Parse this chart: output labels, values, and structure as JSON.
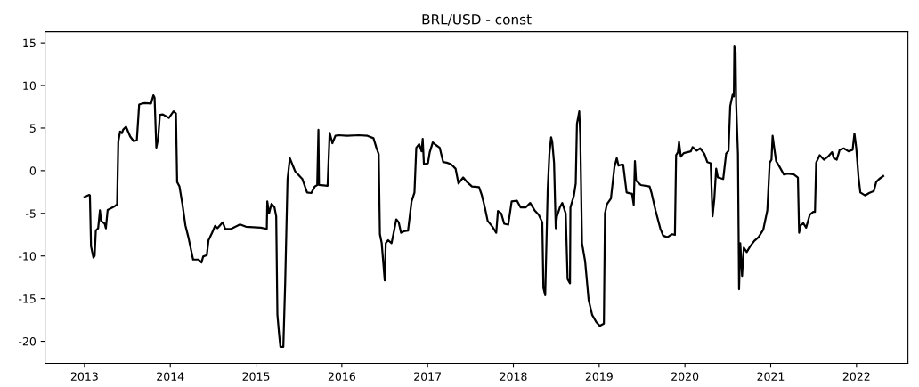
{
  "chart_data": {
    "type": "line",
    "title": "BRL/USD - const",
    "x": [
      2013.0,
      2013.055,
      2013.063,
      2013.076,
      2013.104,
      2013.118,
      2013.132,
      2013.159,
      2013.18,
      2013.194,
      2013.235,
      2013.249,
      2013.27,
      2013.353,
      2013.38,
      2013.394,
      2013.415,
      2013.436,
      2013.45,
      2013.484,
      2013.533,
      2013.574,
      2013.61,
      2013.637,
      2013.67,
      2013.706,
      2013.775,
      2013.803,
      2013.817,
      2013.837,
      2013.858,
      2013.879,
      2013.913,
      2013.983,
      2014.038,
      2014.066,
      2014.08,
      2014.107,
      2014.142,
      2014.176,
      2014.211,
      2014.266,
      2014.329,
      2014.363,
      2014.384,
      2014.426,
      2014.446,
      2014.488,
      2014.522,
      2014.55,
      2014.612,
      2014.64,
      2014.709,
      2014.813,
      2014.882,
      2015.055,
      2015.125,
      2015.131,
      2015.152,
      2015.18,
      2015.215,
      2015.235,
      2015.249,
      2015.27,
      2015.284,
      2015.318,
      2015.339,
      2015.367,
      2015.394,
      2015.429,
      2015.457,
      2015.54,
      2015.595,
      2015.644,
      2015.685,
      2015.713,
      2015.727,
      2015.734,
      2015.834,
      2015.858,
      2015.89,
      2015.925,
      2015.96,
      2016.06,
      2016.198,
      2016.3,
      2016.369,
      2016.403,
      2016.43,
      2016.444,
      2016.465,
      2016.5,
      2016.512,
      2016.54,
      2016.58,
      2016.608,
      2016.635,
      2016.663,
      2016.69,
      2016.724,
      2016.772,
      2016.813,
      2016.847,
      2016.868,
      2016.902,
      2016.93,
      2016.943,
      2016.957,
      2017.004,
      2017.025,
      2017.06,
      2017.093,
      2017.141,
      2017.182,
      2017.223,
      2017.271,
      2017.326,
      2017.36,
      2017.415,
      2017.463,
      2017.517,
      2017.6,
      2017.633,
      2017.667,
      2017.7,
      2017.756,
      2017.8,
      2017.82,
      2017.858,
      2017.893,
      2017.94,
      2017.98,
      2018.043,
      2018.084,
      2018.145,
      2018.196,
      2018.248,
      2018.296,
      2018.337,
      2018.35,
      2018.371,
      2018.4,
      2018.42,
      2018.44,
      2018.453,
      2018.474,
      2018.494,
      2018.508,
      2018.542,
      2018.57,
      2018.61,
      2018.632,
      2018.66,
      2018.665,
      2018.706,
      2018.727,
      2018.741,
      2018.768,
      2018.78,
      2018.8,
      2018.836,
      2018.877,
      2018.918,
      2018.966,
      2019.007,
      2019.055,
      2019.068,
      2019.09,
      2019.137,
      2019.178,
      2019.205,
      2019.226,
      2019.26,
      2019.28,
      2019.32,
      2019.383,
      2019.403,
      2019.417,
      2019.43,
      2019.485,
      2019.588,
      2019.609,
      2019.657,
      2019.712,
      2019.746,
      2019.794,
      2019.85,
      2019.883,
      2019.897,
      2019.918,
      2019.931,
      2019.952,
      2019.986,
      2020.069,
      2020.089,
      2020.137,
      2020.178,
      2020.226,
      2020.26,
      2020.3,
      2020.322,
      2020.343,
      2020.364,
      2020.384,
      2020.446,
      2020.48,
      2020.508,
      2020.528,
      2020.556,
      2020.57,
      2020.576,
      2020.59,
      2020.597,
      2020.618,
      2020.631,
      2020.645,
      2020.666,
      2020.686,
      2020.72,
      2020.762,
      2020.81,
      2020.858,
      2020.913,
      2020.96,
      2020.988,
      2021.009,
      2021.022,
      2021.043,
      2021.063,
      2021.105,
      2021.153,
      2021.2,
      2021.27,
      2021.317,
      2021.331,
      2021.35,
      2021.38,
      2021.413,
      2021.455,
      2021.496,
      2021.516,
      2021.53,
      2021.571,
      2021.62,
      2021.667,
      2021.715,
      2021.736,
      2021.77,
      2021.804,
      2021.852,
      2021.907,
      2021.955,
      2021.976,
      2021.997,
      2022.024,
      2022.045,
      2022.1,
      2022.147,
      2022.202,
      2022.23,
      2022.264,
      2022.312
    ],
    "values": [
      -3.08,
      -2.83,
      -2.9,
      -8.85,
      -10.2,
      -10.0,
      -7.0,
      -6.75,
      -4.65,
      -5.9,
      -6.2,
      -6.75,
      -4.6,
      -4.15,
      -3.95,
      3.4,
      4.6,
      4.4,
      4.8,
      5.15,
      4.0,
      3.46,
      3.57,
      7.76,
      7.87,
      7.94,
      7.87,
      8.85,
      8.57,
      2.7,
      3.74,
      6.54,
      6.6,
      6.19,
      6.96,
      6.71,
      -1.33,
      -1.85,
      -3.95,
      -6.4,
      -7.8,
      -10.42,
      -10.42,
      -10.77,
      -10.07,
      -9.9,
      -8.15,
      -7.27,
      -6.47,
      -6.75,
      -6.05,
      -6.82,
      -6.82,
      -6.29,
      -6.57,
      -6.68,
      -6.82,
      -3.6,
      -5.0,
      -3.88,
      -4.3,
      -5.35,
      -16.9,
      -19.3,
      -20.66,
      -20.66,
      -13.4,
      -0.98,
      1.47,
      0.59,
      -0.1,
      -0.98,
      -2.55,
      -2.62,
      -1.85,
      -1.68,
      4.79,
      -1.68,
      -1.78,
      4.44,
      3.22,
      4.09,
      4.16,
      4.09,
      4.16,
      4.09,
      3.81,
      2.69,
      1.92,
      -7.45,
      -8.5,
      -12.87,
      -8.5,
      -8.15,
      -8.5,
      -7.1,
      -5.7,
      -6.05,
      -7.27,
      -7.1,
      -7.03,
      -3.6,
      -2.55,
      2.69,
      3.11,
      2.27,
      3.74,
      0.77,
      0.87,
      2.17,
      3.32,
      3.04,
      2.69,
      1.01,
      0.94,
      0.77,
      0.24,
      -1.5,
      -0.8,
      -1.36,
      -1.85,
      -1.92,
      -2.9,
      -4.3,
      -5.87,
      -6.57,
      -7.27,
      -4.72,
      -5.0,
      -6.22,
      -6.33,
      -3.6,
      -3.53,
      -4.3,
      -4.3,
      -3.78,
      -4.65,
      -5.17,
      -6.05,
      -13.74,
      -14.6,
      -2.2,
      1.99,
      3.92,
      3.4,
      0.94,
      -6.75,
      -5.35,
      -4.3,
      -3.78,
      -5.0,
      -12.7,
      -13.2,
      -4.3,
      -2.9,
      -1.5,
      5.49,
      6.96,
      4.09,
      -8.5,
      -10.6,
      -15.14,
      -16.9,
      -17.76,
      -18.2,
      -17.94,
      -5.0,
      -3.95,
      -3.25,
      0.42,
      1.47,
      0.59,
      0.7,
      0.7,
      -2.55,
      -2.72,
      -4.0,
      1.12,
      -1.15,
      -1.68,
      -1.85,
      -2.55,
      -4.65,
      -6.75,
      -7.62,
      -7.8,
      -7.45,
      -7.52,
      1.82,
      2.17,
      3.39,
      1.64,
      2.06,
      2.27,
      2.76,
      2.34,
      2.62,
      1.99,
      1.01,
      0.87,
      -5.35,
      -3.25,
      0.24,
      -0.8,
      -0.98,
      1.99,
      2.34,
      7.59,
      8.92,
      8.71,
      14.58,
      13.9,
      7.94,
      1.99,
      -13.9,
      -8.5,
      -12.34,
      -9.02,
      -9.55,
      -8.85,
      -8.22,
      -7.8,
      -6.92,
      -4.65,
      0.94,
      1.29,
      4.09,
      2.52,
      1.12,
      0.42,
      -0.45,
      -0.35,
      -0.45,
      -0.8,
      -7.27,
      -6.4,
      -6.15,
      -6.68,
      -5.17,
      -4.83,
      -4.83,
      0.94,
      1.82,
      1.29,
      1.64,
      2.17,
      1.47,
      1.29,
      2.45,
      2.62,
      2.27,
      2.45,
      4.37,
      2.69,
      -0.8,
      -2.55,
      -2.9,
      -2.62,
      -2.38,
      -1.33,
      -0.98,
      -0.63
    ],
    "color": "#000000",
    "xlim": [
      2012.54,
      2022.6
    ],
    "xticks": [
      2013,
      2014,
      2015,
      2016,
      2017,
      2018,
      2019,
      2020,
      2021,
      2022
    ],
    "ylim": [
      -22.6,
      16.3
    ],
    "yticks": [
      -20,
      -15,
      -10,
      -5,
      0,
      5,
      10,
      15
    ],
    "grid": false,
    "legend": false
  }
}
